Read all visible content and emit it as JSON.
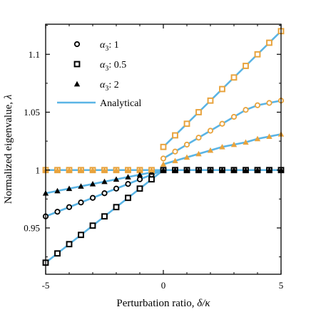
{
  "chart_data": {
    "type": "scatter",
    "xlabel": {
      "text": "Perturbation ratio, ",
      "symbol": "δ/κ"
    },
    "ylabel": {
      "text": "Normalized eigenvalue, ",
      "symbol": "λ"
    },
    "xlim": [
      -5,
      5
    ],
    "ylim": [
      0.91,
      1.126
    ],
    "x_ticks": [
      -5,
      0,
      5
    ],
    "x_tick_labels": [
      "-5",
      "0",
      "5"
    ],
    "y_ticks": [
      0.95,
      1.0,
      1.05,
      1.1
    ],
    "y_tick_labels": [
      "0.95",
      "1",
      "1.05",
      "1.1"
    ],
    "grid": false,
    "legend_position": "top-left",
    "x": [
      -5,
      -4.5,
      -4,
      -3.5,
      -3,
      -2.5,
      -2,
      -1.5,
      -1,
      -0.5,
      0,
      0.5,
      1,
      1.5,
      2,
      2.5,
      3,
      3.5,
      4,
      4.5,
      5
    ],
    "series": [
      {
        "name_symbol": "α",
        "name_sub": "3",
        "name_value": ": 1",
        "marker": "circle",
        "lower": [
          0.96,
          0.964,
          0.968,
          0.972,
          0.976,
          0.98,
          0.984,
          0.988,
          0.992,
          0.996,
          1.0,
          1.0,
          1.0,
          1.0,
          1.0,
          1.0,
          1.0,
          1.0,
          1.0,
          1.0,
          1.0
        ],
        "upper": [
          1.0,
          1.0,
          1.0,
          1.0,
          1.0,
          1.0,
          1.0,
          1.0,
          1.0,
          1.0,
          1.01,
          1.016,
          1.022,
          1.028,
          1.034,
          1.04,
          1.046,
          1.052,
          1.056,
          1.058,
          1.06
        ],
        "lower_color": "#000000",
        "upper_color": "#E8A33D"
      },
      {
        "name_symbol": "α",
        "name_sub": "3",
        "name_value": ": 0.5",
        "marker": "square",
        "lower": [
          0.92,
          0.928,
          0.936,
          0.944,
          0.952,
          0.96,
          0.968,
          0.976,
          0.984,
          0.992,
          1.0,
          1.0,
          1.0,
          1.0,
          1.0,
          1.0,
          1.0,
          1.0,
          1.0,
          1.0,
          1.0
        ],
        "upper": [
          1.0,
          1.0,
          1.0,
          1.0,
          1.0,
          1.0,
          1.0,
          1.0,
          1.0,
          1.0,
          1.02,
          1.03,
          1.04,
          1.05,
          1.06,
          1.07,
          1.08,
          1.09,
          1.1,
          1.11,
          1.12
        ],
        "lower_color": "#000000",
        "upper_color": "#E8A33D"
      },
      {
        "name_symbol": "α",
        "name_sub": "3",
        "name_value": ": 2",
        "marker": "triangle",
        "lower": [
          0.98,
          0.982,
          0.984,
          0.986,
          0.988,
          0.99,
          0.992,
          0.994,
          0.996,
          0.998,
          1.0,
          1.0,
          1.0,
          1.0,
          1.0,
          1.0,
          1.0,
          1.0,
          1.0,
          1.0,
          1.0
        ],
        "upper": [
          1.0,
          1.0,
          1.0,
          1.0,
          1.0,
          1.0,
          1.0,
          1.0,
          1.0,
          1.0,
          1.005,
          1.008,
          1.011,
          1.014,
          1.017,
          1.02,
          1.022,
          1.024,
          1.027,
          1.029,
          1.031
        ],
        "lower_color": "#000000",
        "upper_color": "#E8A33D"
      }
    ],
    "analytical": {
      "name": "Analytical",
      "color": "#5AB4E5"
    },
    "flat_line": {
      "value": 1.0,
      "x_range": [
        -5,
        5
      ]
    }
  }
}
